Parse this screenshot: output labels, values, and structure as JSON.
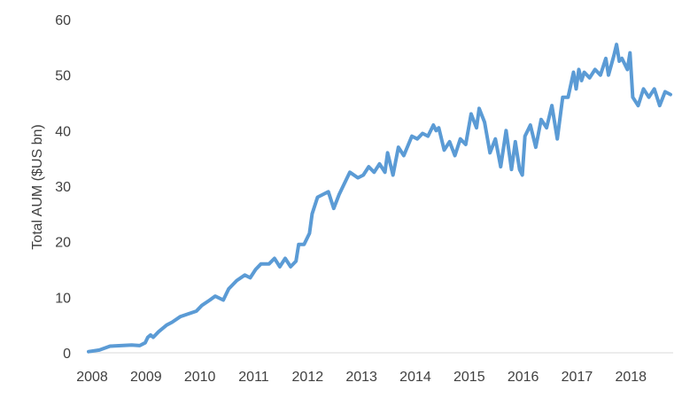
{
  "chart_data": {
    "type": "line",
    "title": "",
    "xlabel": "",
    "ylabel": "Total AUM ($US bn)",
    "xlim": [
      2008.0,
      2018.85
    ],
    "ylim": [
      0,
      60
    ],
    "x_ticks": [
      "2008",
      "2009",
      "2010",
      "2011",
      "2012",
      "2013",
      "2014",
      "2015",
      "2016",
      "2017",
      "2018"
    ],
    "y_ticks": [
      "0",
      "10",
      "20",
      "30",
      "40",
      "50",
      "60"
    ],
    "grid": false,
    "legend": "none",
    "colors": {
      "line": "#5b9bd5",
      "axis": "#d9d9d9",
      "text": "#404040"
    },
    "series": [
      {
        "x": [
          2008.0,
          2008.2,
          2008.4,
          2008.6,
          2008.8,
          2008.95,
          2009.05,
          2009.1,
          2009.15,
          2009.2,
          2009.3,
          2009.45,
          2009.55,
          2009.7,
          2009.85,
          2010.0,
          2010.1,
          2010.25,
          2010.35,
          2010.5,
          2010.6,
          2010.75,
          2010.9,
          2011.0,
          2011.1,
          2011.2,
          2011.35,
          2011.45,
          2011.55,
          2011.65,
          2011.75,
          2011.85,
          2011.9,
          2012.0,
          2012.1,
          2012.15,
          2012.25,
          2012.35,
          2012.45,
          2012.55,
          2012.65,
          2012.75,
          2012.85,
          2013.0,
          2013.1,
          2013.2,
          2013.3,
          2013.4,
          2013.5,
          2013.55,
          2013.65,
          2013.75,
          2013.85,
          2014.0,
          2014.1,
          2014.2,
          2014.3,
          2014.4,
          2014.45,
          2014.5,
          2014.6,
          2014.7,
          2014.8,
          2014.9,
          2015.0,
          2015.1,
          2015.2,
          2015.25,
          2015.35,
          2015.45,
          2015.55,
          2015.65,
          2015.75,
          2015.85,
          2015.92,
          2016.0,
          2016.05,
          2016.1,
          2016.2,
          2016.3,
          2016.4,
          2016.5,
          2016.6,
          2016.7,
          2016.8,
          2016.9,
          2017.0,
          2017.05,
          2017.1,
          2017.15,
          2017.2,
          2017.3,
          2017.4,
          2017.5,
          2017.6,
          2017.65,
          2017.75,
          2017.8,
          2017.85,
          2017.9,
          2018.0,
          2018.05,
          2018.1,
          2018.2,
          2018.3,
          2018.4,
          2018.5,
          2018.6,
          2018.7,
          2018.8
        ],
        "y": [
          0.2,
          0.5,
          1.2,
          1.3,
          1.4,
          1.3,
          1.8,
          2.8,
          3.2,
          2.8,
          3.8,
          5.0,
          5.5,
          6.5,
          7.0,
          7.5,
          8.5,
          9.5,
          10.2,
          9.5,
          11.5,
          13.0,
          14.0,
          13.5,
          15.0,
          16.0,
          16.0,
          17.0,
          15.5,
          17.0,
          15.5,
          16.5,
          19.5,
          19.5,
          21.5,
          25.0,
          28.0,
          28.5,
          29.0,
          26.0,
          28.5,
          30.5,
          32.5,
          31.5,
          32.0,
          33.5,
          32.5,
          34.0,
          32.5,
          36.0,
          32.0,
          37.0,
          35.5,
          39.0,
          38.5,
          39.5,
          39.0,
          41.0,
          40.0,
          40.5,
          36.5,
          38.0,
          35.5,
          38.5,
          37.5,
          43.0,
          40.5,
          44.0,
          41.5,
          36.0,
          38.5,
          33.5,
          40.0,
          33.0,
          38.0,
          33.0,
          32.0,
          39.0,
          41.0,
          37.0,
          42.0,
          40.5,
          44.5,
          38.5,
          46.0,
          46.0,
          50.5,
          47.5,
          51.0,
          49.0,
          50.5,
          49.5,
          51.0,
          50.0,
          53.0,
          50.0,
          53.5,
          55.5,
          52.5,
          53.0,
          51.0,
          54.0,
          46.0,
          44.5,
          47.5,
          46.0,
          47.5,
          44.5,
          47.0,
          46.5
        ]
      }
    ]
  }
}
